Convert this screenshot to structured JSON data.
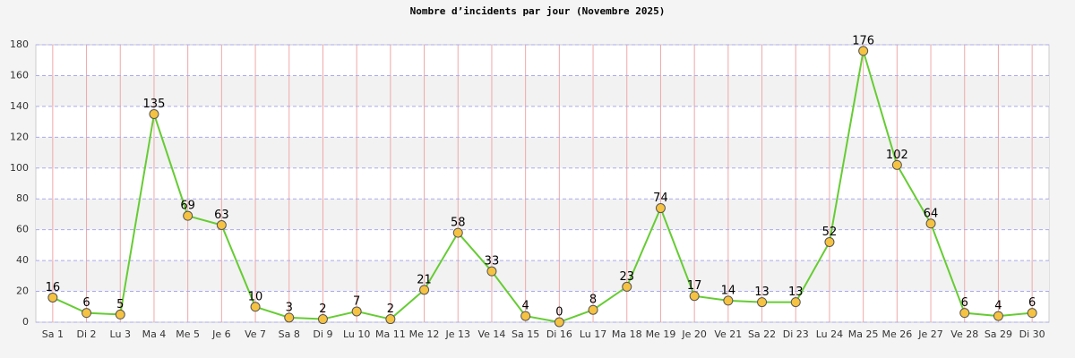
{
  "chart_data": {
    "type": "line",
    "title": "Nombre d’incidents par jour (Novembre 2025)",
    "categories": [
      "Sa 1",
      "Di 2",
      "Lu 3",
      "Ma 4",
      "Me 5",
      "Je 6",
      "Ve 7",
      "Sa 8",
      "Di 9",
      "Lu 10",
      "Ma 11",
      "Me 12",
      "Je 13",
      "Ve 14",
      "Sa 15",
      "Di 16",
      "Lu 17",
      "Ma 18",
      "Me 19",
      "Je 20",
      "Ve 21",
      "Sa 22",
      "Di 23",
      "Lu 24",
      "Ma 25",
      "Me 26",
      "Je 27",
      "Ve 28",
      "Sa 29",
      "Di 30"
    ],
    "values": [
      16,
      6,
      5,
      135,
      69,
      63,
      10,
      3,
      2,
      7,
      2,
      21,
      58,
      33,
      4,
      0,
      8,
      23,
      74,
      17,
      14,
      13,
      13,
      52,
      176,
      102,
      64,
      6,
      4,
      6
    ],
    "color": "#66cc33",
    "marker_color": "#f5c242",
    "ylim": [
      0,
      180
    ],
    "yticks": [
      0,
      20,
      40,
      60,
      80,
      100,
      120,
      140,
      160,
      180
    ],
    "grid": true
  }
}
